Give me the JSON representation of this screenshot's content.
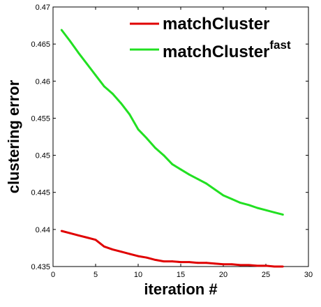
{
  "chart_data": {
    "type": "line",
    "xlabel": "iteration #",
    "ylabel": "clustering error",
    "xlim": [
      0,
      30
    ],
    "ylim": [
      0.435,
      0.47
    ],
    "xticks": [
      "0",
      "5",
      "10",
      "15",
      "20",
      "25",
      "30"
    ],
    "yticks": [
      "0.435",
      "0.44",
      "0.445",
      "0.45",
      "0.455",
      "0.46",
      "0.465",
      "0.47"
    ],
    "grid": false,
    "legend_position": "top-right",
    "series": [
      {
        "name": "matchCluster",
        "color": "#e00000",
        "x": [
          1,
          2,
          3,
          4,
          5,
          6,
          7,
          8,
          9,
          10,
          11,
          12,
          13,
          14,
          15,
          16,
          17,
          18,
          19,
          20,
          21,
          22,
          23,
          24,
          25,
          26,
          27
        ],
        "y": [
          0.4398,
          0.4395,
          0.4392,
          0.4389,
          0.4386,
          0.4377,
          0.4373,
          0.437,
          0.4367,
          0.4364,
          0.4362,
          0.4359,
          0.4357,
          0.4357,
          0.4356,
          0.4356,
          0.4355,
          0.4355,
          0.4354,
          0.4353,
          0.4353,
          0.4352,
          0.4352,
          0.4351,
          0.4351,
          0.435,
          0.435
        ]
      },
      {
        "name": "matchCluster",
        "name_sup": "fast",
        "color": "#22e022",
        "x": [
          1,
          2,
          3,
          4,
          5,
          6,
          7,
          8,
          9,
          10,
          11,
          12,
          13,
          14,
          15,
          16,
          17,
          18,
          19,
          20,
          21,
          22,
          23,
          24,
          25,
          26,
          27
        ],
        "y": [
          0.4669,
          0.4654,
          0.4638,
          0.4623,
          0.4608,
          0.4593,
          0.4583,
          0.457,
          0.4555,
          0.4535,
          0.4523,
          0.451,
          0.45,
          0.4488,
          0.4481,
          0.4474,
          0.4468,
          0.4462,
          0.4454,
          0.4446,
          0.4441,
          0.4436,
          0.4433,
          0.4429,
          0.4426,
          0.4423,
          0.442
        ]
      }
    ]
  }
}
